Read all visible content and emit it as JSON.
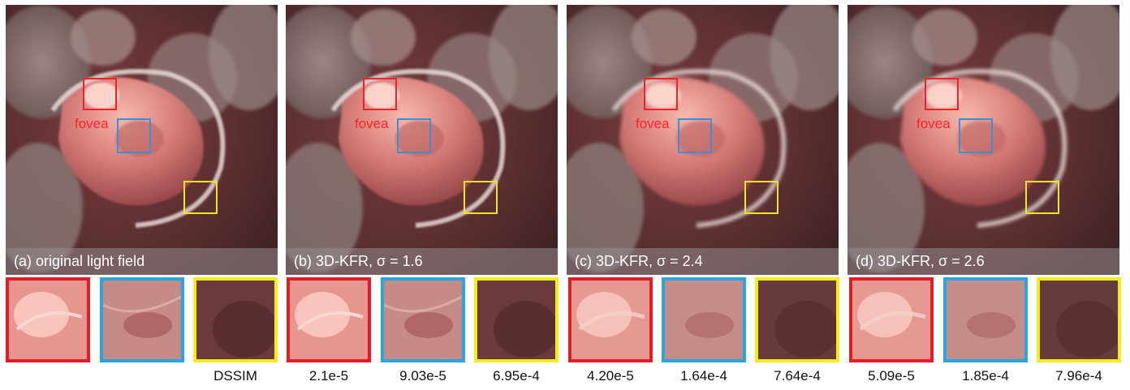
{
  "panels": [
    {
      "caption": "(a) original light field",
      "fovea_label": "fovea"
    },
    {
      "caption": "(b) 3D-KFR, σ = 1.6",
      "fovea_label": "fovea"
    },
    {
      "caption": "(c) 3D-KFR, σ = 2.4",
      "fovea_label": "fovea"
    },
    {
      "caption": "(d) 3D-KFR, σ = 2.6",
      "fovea_label": "fovea"
    }
  ],
  "metrics": {
    "label": "DSSIM",
    "values": [
      "2.1e-5",
      "9.03e-5",
      "6.95e-4",
      "4.20e-5",
      "1.64e-4",
      "7.64e-4",
      "5.09e-5",
      "1.85e-4",
      "7.96e-4"
    ]
  },
  "colors": {
    "red_roi": "#e31d24",
    "blue_roi": "#27a6e0",
    "yellow_roi": "#f5ec1c",
    "fovea_text": "#ff2222"
  }
}
